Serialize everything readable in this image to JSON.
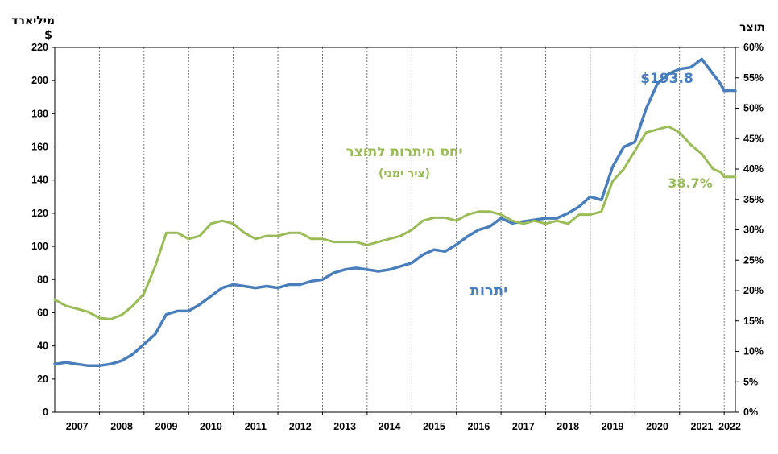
{
  "chart_data": {
    "type": "line",
    "left_axis": {
      "unit_label": "מיליארד",
      "unit_symbol": "$",
      "ylim": [
        0,
        220
      ],
      "ticks": [
        "0",
        "20",
        "40",
        "60",
        "80",
        "100",
        "120",
        "140",
        "160",
        "180",
        "200",
        "220"
      ]
    },
    "right_axis": {
      "unit_label": "תוצר",
      "ylim": [
        0,
        60
      ],
      "ticks": [
        "0%",
        "5%",
        "10%",
        "15%",
        "20%",
        "25%",
        "30%",
        "35%",
        "40%",
        "45%",
        "50%",
        "55%",
        "60%"
      ]
    },
    "x_axis": {
      "categories": [
        "2007",
        "2008",
        "2009",
        "2010",
        "2011",
        "2012",
        "2013",
        "2014",
        "2015",
        "2016",
        "2017",
        "2018",
        "2019",
        "2020",
        "2021",
        "2022"
      ]
    },
    "grid": "vertical dashed at year boundaries",
    "series": [
      {
        "name": "יתרות",
        "axis": "left",
        "color": "#4a7ebb",
        "x": [
          2007.0,
          2007.25,
          2007.5,
          2007.75,
          2008.0,
          2008.25,
          2008.5,
          2008.75,
          2009.0,
          2009.25,
          2009.5,
          2009.75,
          2010.0,
          2010.25,
          2010.5,
          2010.75,
          2011.0,
          2011.25,
          2011.5,
          2011.75,
          2012.0,
          2012.25,
          2012.5,
          2012.75,
          2013.0,
          2013.25,
          2013.5,
          2013.75,
          2014.0,
          2014.25,
          2014.5,
          2014.75,
          2015.0,
          2015.25,
          2015.5,
          2015.75,
          2016.0,
          2016.25,
          2016.5,
          2016.75,
          2017.0,
          2017.25,
          2017.5,
          2017.75,
          2018.0,
          2018.25,
          2018.5,
          2018.75,
          2019.0,
          2019.25,
          2019.5,
          2019.75,
          2020.0,
          2020.25,
          2020.5,
          2020.75,
          2021.0,
          2021.25,
          2021.5,
          2021.75,
          2021.92,
          2022.0,
          2022.1,
          2022.2,
          2022.25
        ],
        "values": [
          29,
          30,
          29,
          28,
          28,
          29,
          31,
          35,
          41,
          47,
          59,
          61,
          61,
          65,
          70,
          75,
          77,
          76,
          75,
          76,
          75,
          77,
          77,
          79,
          80,
          84,
          86,
          87,
          86,
          85,
          86,
          88,
          90,
          95,
          98,
          97,
          101,
          106,
          110,
          112,
          117,
          114,
          115,
          116,
          117,
          117,
          120,
          124,
          130,
          128,
          148,
          160,
          163,
          183,
          198,
          204,
          207,
          208,
          213,
          204,
          198,
          193.8,
          194,
          194,
          193.8
        ]
      },
      {
        "name": "יחס היתרות לתוצר",
        "axis": "right",
        "color": "#9bbb59",
        "x": [
          2007.0,
          2007.25,
          2007.5,
          2007.75,
          2008.0,
          2008.25,
          2008.5,
          2008.75,
          2009.0,
          2009.25,
          2009.5,
          2009.75,
          2010.0,
          2010.25,
          2010.5,
          2010.75,
          2011.0,
          2011.25,
          2011.5,
          2011.75,
          2012.0,
          2012.25,
          2012.5,
          2012.75,
          2013.0,
          2013.25,
          2013.5,
          2013.75,
          2014.0,
          2014.25,
          2014.5,
          2014.75,
          2015.0,
          2015.25,
          2015.5,
          2015.75,
          2016.0,
          2016.25,
          2016.5,
          2016.75,
          2017.0,
          2017.25,
          2017.5,
          2017.75,
          2018.0,
          2018.25,
          2018.5,
          2018.75,
          2019.0,
          2019.25,
          2019.5,
          2019.75,
          2020.0,
          2020.25,
          2020.5,
          2020.75,
          2021.0,
          2021.25,
          2021.5,
          2021.75,
          2021.92,
          2022.0,
          2022.1,
          2022.2,
          2022.25
        ],
        "values": [
          18.5,
          17.5,
          17,
          16.5,
          15.5,
          15.3,
          16,
          17.5,
          19.5,
          24,
          29.5,
          29.5,
          28.5,
          29,
          31,
          31.5,
          31,
          29.5,
          28.5,
          29,
          29,
          29.5,
          29.5,
          28.5,
          28.5,
          28,
          28,
          28,
          27.5,
          28,
          28.5,
          29,
          30,
          31.5,
          32,
          32,
          31.5,
          32.5,
          33,
          33,
          32.5,
          31.5,
          31,
          31.5,
          31,
          31.5,
          31,
          32.5,
          32.5,
          33,
          38,
          40,
          43,
          46,
          46.5,
          47,
          46,
          44,
          42.5,
          40,
          39.5,
          38.7,
          38.7,
          38.7,
          38.7
        ]
      }
    ],
    "annotations": {
      "reserves_value": "$193.8",
      "ratio_value": "38.7%",
      "ratio_title": "יחס היתרות לתוצר",
      "ratio_subtitle": "(ציר ימני)",
      "reserves_label": "יתרות"
    }
  }
}
